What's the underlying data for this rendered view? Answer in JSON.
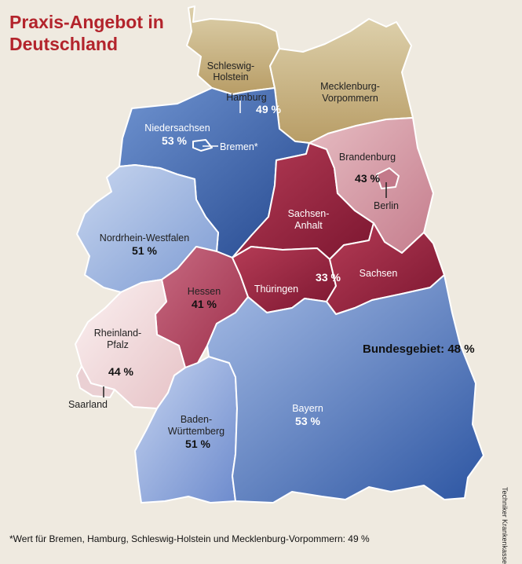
{
  "title_line1": "Praxis-Angebot in",
  "title_line2": "Deutschland",
  "national": "Bundesgebiet: 48 %",
  "footnote": "*Wert für Bremen, Hamburg, Schleswig-Holstein und Mecklenburg-Vorpommern: 49 %",
  "credit": "Techniker Krankenkasse",
  "states": {
    "sh": {
      "name1": "Schleswig-",
      "name2": "Holstein",
      "color": "#c9b286"
    },
    "mv": {
      "name1": "Mecklenburg-",
      "name2": "Vorpommern",
      "color": "#c9b286"
    },
    "hh": {
      "name": "Hamburg",
      "value": "49 %"
    },
    "ni": {
      "name": "Niedersachsen",
      "value": "53 %",
      "color": "#3f6bb0"
    },
    "hb": {
      "name": "Bremen*"
    },
    "bb": {
      "name": "Brandenburg",
      "value": "43 %",
      "color": "#d69aa5"
    },
    "be": {
      "name": "Berlin"
    },
    "st": {
      "name1": "Sachsen-",
      "name2": "Anhalt",
      "color": "#a72f48"
    },
    "th": {
      "name": "Thüringen",
      "color": "#a72f48"
    },
    "sn": {
      "name": "Sachsen",
      "color": "#a72f48"
    },
    "st_th_sn": {
      "value": "33 %"
    },
    "nw": {
      "name": "Nordrhein-Westfalen",
      "value": "51 %",
      "color": "#9fb6de"
    },
    "he": {
      "name": "Hessen",
      "value": "41 %",
      "color": "#b84b66"
    },
    "rp": {
      "name1": "Rheinland-",
      "name2": "Pfalz",
      "value": "44 %",
      "color": "#f1dcdd"
    },
    "sl": {
      "name": "Saarland"
    },
    "bw": {
      "name1": "Baden-",
      "name2": "Württemberg",
      "value": "51 %",
      "color": "#a9bde4"
    },
    "by": {
      "name": "Bayern",
      "value": "53 %",
      "color": "#3f6bb0"
    }
  }
}
